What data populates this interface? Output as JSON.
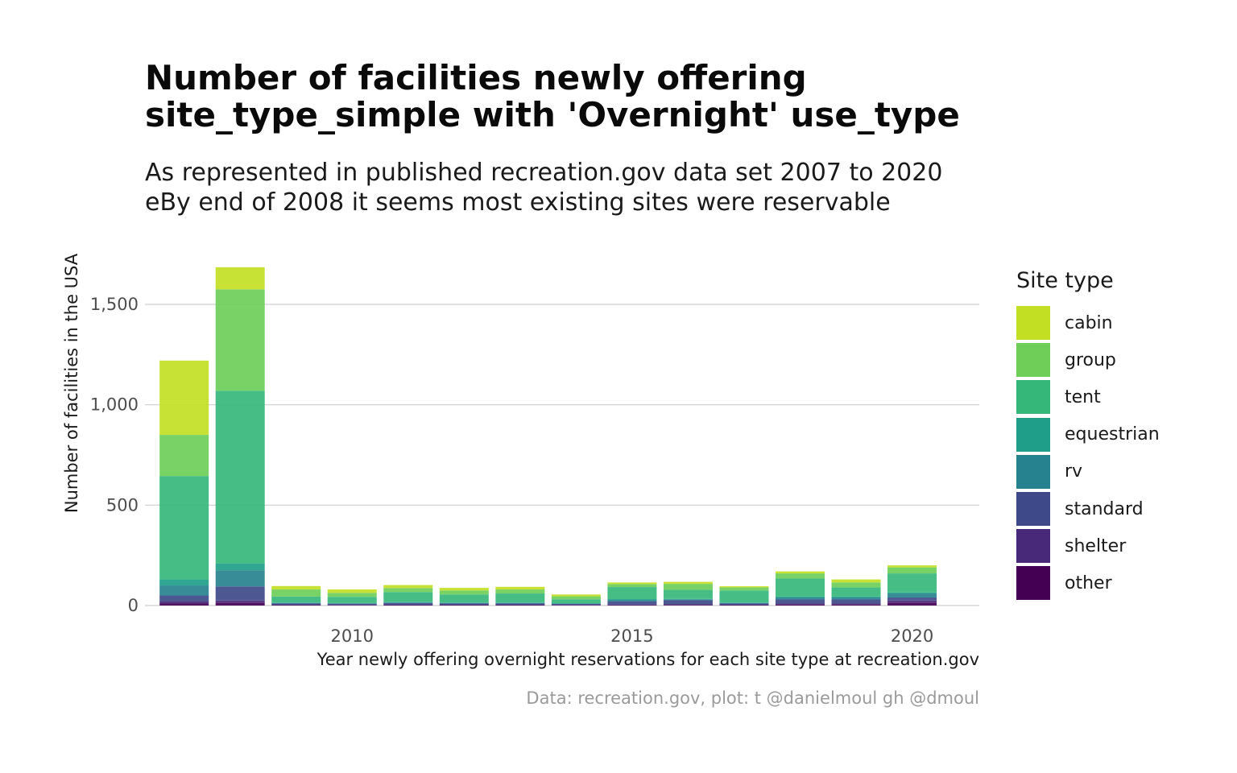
{
  "title_line1": "Number of facilities newly offering",
  "title_line2": "site_type_simple with 'Overnight' use_type",
  "subtitle_line1": "As represented in published recreation.gov data set 2007 to 2020",
  "subtitle_line2": "eBy end of 2008 it seems most existing sites were reservable",
  "caption": "Data: recreation.gov, plot: t @danielmoul gh @dmoul",
  "legend": {
    "title": "Site type",
    "items": [
      {
        "label": "cabin",
        "color": "#c2df23"
      },
      {
        "label": "group",
        "color": "#6ece58"
      },
      {
        "label": "tent",
        "color": "#35b779"
      },
      {
        "label": "equestrian",
        "color": "#1f9e89"
      },
      {
        "label": "rv",
        "color": "#26828e"
      },
      {
        "label": "standard",
        "color": "#3e4989"
      },
      {
        "label": "shelter",
        "color": "#482878"
      },
      {
        "label": "other",
        "color": "#440154"
      }
    ]
  },
  "chart_data": {
    "type": "bar",
    "stacked": true,
    "xlabel": "Year newly offering overnight reservations for each site type at recreation.gov",
    "ylabel": "Number of facilities in the USA",
    "xlim": [
      2006.3,
      2021.2
    ],
    "ylim": [
      0,
      1720
    ],
    "x_ticks": [
      2010,
      2015,
      2020
    ],
    "x_tick_labels": [
      "2010",
      "2015",
      "2020"
    ],
    "y_ticks": [
      0,
      500,
      1000,
      1500
    ],
    "y_tick_labels": [
      "0",
      "500",
      "1,000",
      "1,500"
    ],
    "grid": "horizontal",
    "legend_position": "right",
    "categories": [
      2007,
      2008,
      2009,
      2010,
      2011,
      2012,
      2013,
      2014,
      2015,
      2016,
      2017,
      2018,
      2019,
      2020
    ],
    "series": [
      {
        "name": "other",
        "values": [
          10,
          15,
          2,
          2,
          2,
          2,
          2,
          2,
          2,
          3,
          2,
          5,
          5,
          15
        ]
      },
      {
        "name": "shelter",
        "values": [
          10,
          10,
          2,
          1,
          2,
          2,
          2,
          1,
          3,
          3,
          2,
          5,
          5,
          10
        ]
      },
      {
        "name": "standard",
        "values": [
          30,
          70,
          6,
          5,
          8,
          6,
          6,
          5,
          15,
          20,
          6,
          20,
          20,
          15
        ]
      },
      {
        "name": "rv",
        "values": [
          50,
          80,
          3,
          3,
          3,
          3,
          3,
          2,
          8,
          5,
          3,
          10,
          10,
          20
        ]
      },
      {
        "name": "equestrian",
        "values": [
          30,
          35,
          2,
          2,
          2,
          2,
          2,
          1,
          4,
          2,
          2,
          5,
          5,
          5
        ]
      },
      {
        "name": "tent",
        "values": [
          515,
          860,
          30,
          30,
          50,
          40,
          45,
          20,
          60,
          45,
          60,
          90,
          45,
          95
        ]
      },
      {
        "name": "group",
        "values": [
          205,
          505,
          35,
          20,
          20,
          20,
          20,
          15,
          15,
          30,
          15,
          25,
          25,
          30
        ]
      },
      {
        "name": "cabin",
        "values": [
          370,
          110,
          17,
          17,
          15,
          13,
          13,
          9,
          8,
          10,
          6,
          10,
          15,
          10
        ]
      }
    ]
  }
}
